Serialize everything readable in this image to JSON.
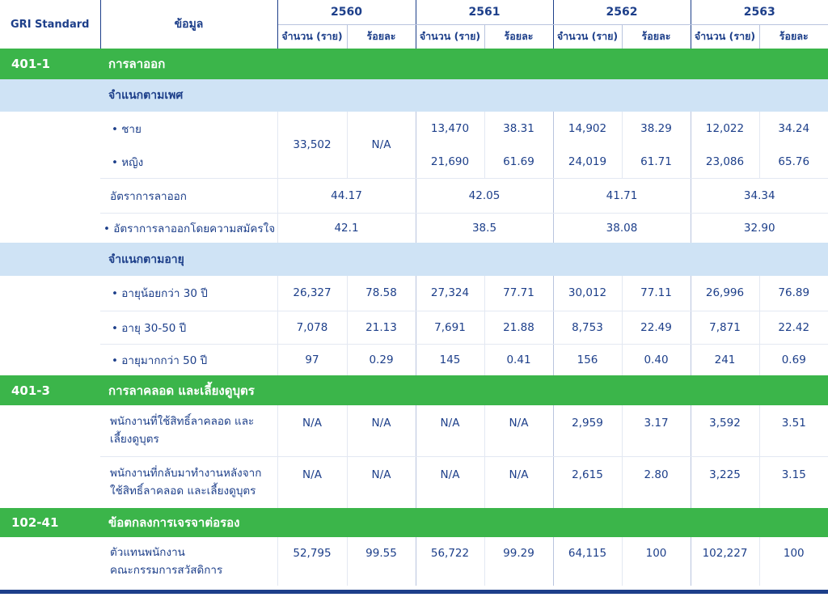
{
  "header": {
    "gri_standard": "GRI Standard",
    "data_label": "ข้อมูล",
    "years": [
      "2560",
      "2561",
      "2562",
      "2563"
    ],
    "count_label": "จำนวน (ราย)",
    "percent_label": "ร้อยละ"
  },
  "sections": {
    "s401_1": {
      "code": "401-1",
      "title": "การลาออก"
    },
    "s401_3": {
      "code": "401-3",
      "title": "การลาคลอด และเลี้ยงดูบุตร"
    },
    "s102_41": {
      "code": "102-41",
      "title": "ข้อตกลงการเจรจาต่อรอง"
    }
  },
  "gender": {
    "title": "จำแนกตามเพศ",
    "male_label": "• ชาย",
    "female_label": "• หญิง",
    "y2560_count": "33,502",
    "y2560_pct": "N/A",
    "male": [
      "13,470",
      "38.31",
      "14,902",
      "38.29",
      "12,022",
      "34.24"
    ],
    "female": [
      "21,690",
      "61.69",
      "24,019",
      "61.71",
      "23,086",
      "65.76"
    ]
  },
  "turnover_rate": {
    "label": "อัตราการลาออก",
    "values": [
      "44.17",
      "42.05",
      "41.71",
      "34.34"
    ]
  },
  "voluntary_rate": {
    "label": "• อัตราการลาออกโดยความสมัครใจ",
    "values": [
      "42.1",
      "38.5",
      "38.08",
      "32.90"
    ]
  },
  "age": {
    "title": "จำแนกตามอายุ",
    "under30": {
      "label": "• อายุน้อยกว่า 30 ปี",
      "values": [
        "26,327",
        "78.58",
        "27,324",
        "77.71",
        "30,012",
        "77.11",
        "26,996",
        "76.89"
      ]
    },
    "age30_50": {
      "label": "• อายุ 30-50 ปี",
      "values": [
        "7,078",
        "21.13",
        "7,691",
        "21.88",
        "8,753",
        "22.49",
        "7,871",
        "22.42"
      ]
    },
    "over50": {
      "label": "• อายุมากกว่า 50 ปี",
      "values": [
        "97",
        "0.29",
        "145",
        "0.41",
        "156",
        "0.40",
        "241",
        "0.69"
      ]
    }
  },
  "parental": {
    "leave": {
      "label_1": "พนักงานที่ใช้สิทธิ์ลาคลอด และ",
      "label_2": "เลี้ยงดูบุตร",
      "values": [
        "N/A",
        "N/A",
        "N/A",
        "N/A",
        "2,959",
        "3.17",
        "3,592",
        "3.51"
      ]
    },
    "return": {
      "label_1": "พนักงานที่กลับมาทำงานหลังจาก",
      "label_2": "ใช้สิทธิ์ลาคลอด และเลี้ยงดูบุตร",
      "values": [
        "N/A",
        "N/A",
        "N/A",
        "N/A",
        "2,615",
        "2.80",
        "3,225",
        "3.15"
      ]
    }
  },
  "bargaining": {
    "label_1": "ตัวแทนพนักงาน",
    "label_2": "คณะกรรมการสวัสดิการ",
    "values": [
      "52,795",
      "99.55",
      "56,722",
      "99.29",
      "64,115",
      "100",
      "102,227",
      "100"
    ]
  },
  "colors": {
    "green": "#3bb54a",
    "light_blue": "#cfe3f5",
    "text_blue": "#1d3f8a"
  }
}
